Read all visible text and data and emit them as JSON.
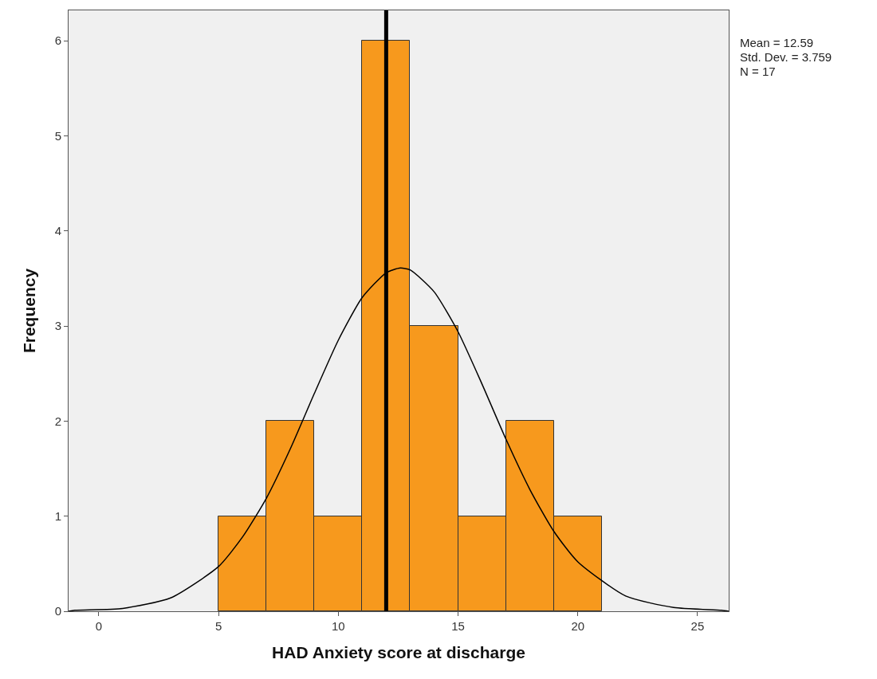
{
  "chart_data": {
    "type": "histogram",
    "xlabel": "HAD Anxiety score at discharge",
    "ylabel": "Frequency",
    "series": [
      {
        "bins": [
          5,
          7,
          9,
          11,
          13,
          15,
          17,
          19,
          21
        ],
        "values": [
          1,
          2,
          1,
          6,
          3,
          1,
          2,
          1
        ],
        "color": "#f7991d"
      },
      {
        "type": "line",
        "color": "#000000",
        "x": [
          -1.26,
          -1,
          1,
          3,
          5,
          6,
          7,
          8,
          9,
          10,
          11,
          12,
          12.59,
          13,
          14,
          15,
          16,
          17,
          18,
          19,
          20,
          22,
          24,
          26,
          26.3
        ],
        "values": [
          0,
          0.01,
          0.03,
          0.14,
          0.47,
          0.78,
          1.19,
          1.71,
          2.29,
          2.85,
          3.3,
          3.56,
          3.61,
          3.59,
          3.36,
          2.94,
          2.39,
          1.81,
          1.28,
          0.84,
          0.52,
          0.16,
          0.04,
          0.01,
          0
        ]
      }
    ],
    "ref_lines": [
      {
        "axis": "x",
        "value": 12,
        "color": "#000000"
      }
    ],
    "annotations": [
      "Mean = 12.59",
      "Std. Dev. = 3.759",
      "N = 17"
    ],
    "xlim": [
      -1.26,
      26.3
    ],
    "xticks": [
      0,
      5,
      10,
      15,
      20,
      25
    ],
    "ylim": [
      0,
      6.32
    ],
    "yticks": [
      0,
      1,
      2,
      3,
      4,
      5,
      6
    ],
    "grid": false
  }
}
